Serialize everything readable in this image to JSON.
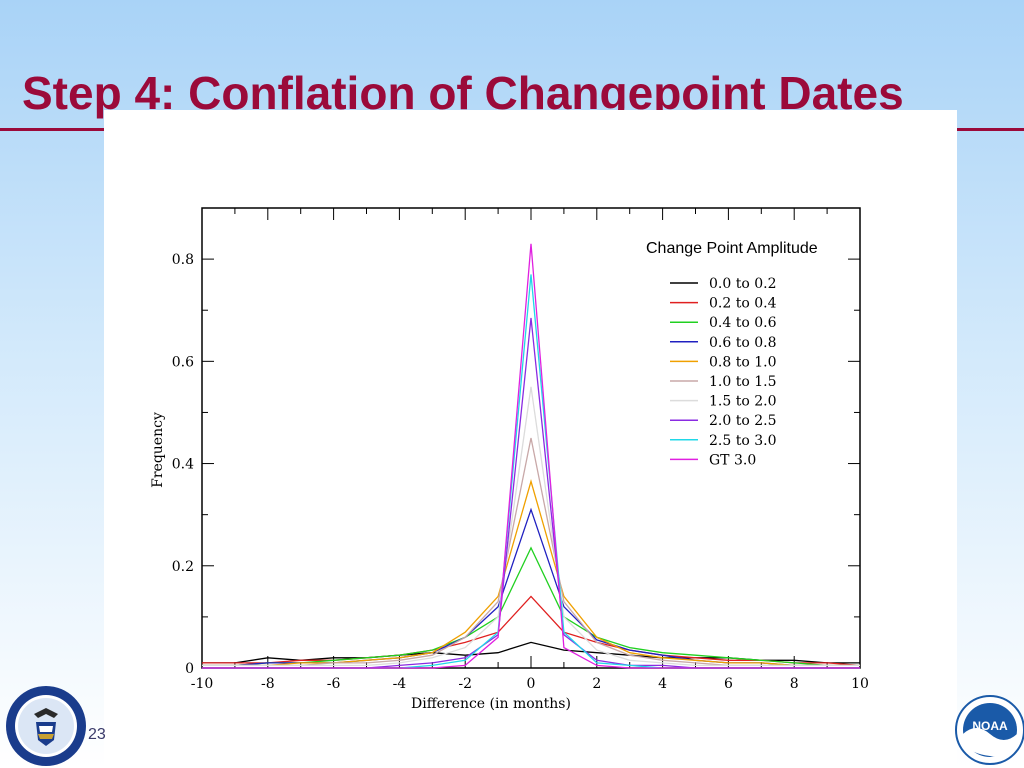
{
  "slide": {
    "title": "Step 4: Conflation of Changepoint Dates",
    "page_number": "23"
  },
  "logos": {
    "left_icon": "department-of-commerce-seal-icon",
    "right_icon": "noaa-logo-icon",
    "noaa_text": "NOAA"
  },
  "chart_data": {
    "type": "line",
    "xlabel": "Difference (in months)",
    "ylabel": "Frequency",
    "xlim": [
      -10,
      10
    ],
    "ylim": [
      0,
      0.9
    ],
    "xticks": [
      -10,
      -8,
      -6,
      -4,
      -2,
      0,
      2,
      4,
      6,
      8,
      10
    ],
    "yticks": [
      0,
      0.2,
      0.4,
      0.6,
      0.8
    ],
    "ytick_labels": [
      "0",
      "0.2",
      "0.4",
      "0.6",
      "0.8"
    ],
    "grid": false,
    "legend": {
      "title": "Change Point Amplitude",
      "position": "top-right"
    },
    "x": [
      -10,
      -9,
      -8,
      -7,
      -6,
      -5,
      -4,
      -3,
      -2,
      -1,
      0,
      1,
      2,
      3,
      4,
      5,
      6,
      7,
      8,
      9,
      10
    ],
    "series": [
      {
        "name": "0.0 to 0.2",
        "color": "#000000",
        "values": [
          0.01,
          0.01,
          0.02,
          0.015,
          0.02,
          0.02,
          0.025,
          0.03,
          0.025,
          0.03,
          0.05,
          0.035,
          0.03,
          0.025,
          0.02,
          0.02,
          0.02,
          0.015,
          0.015,
          0.01,
          0.01
        ]
      },
      {
        "name": "0.2 to 0.4",
        "color": "#e02020",
        "values": [
          0.01,
          0.01,
          0.01,
          0.015,
          0.015,
          0.02,
          0.025,
          0.035,
          0.05,
          0.07,
          0.14,
          0.07,
          0.05,
          0.035,
          0.025,
          0.02,
          0.015,
          0.015,
          0.01,
          0.01,
          0.005
        ]
      },
      {
        "name": "0.4 to 0.6",
        "color": "#20d020",
        "values": [
          0.005,
          0.005,
          0.01,
          0.01,
          0.015,
          0.02,
          0.025,
          0.035,
          0.06,
          0.1,
          0.235,
          0.1,
          0.06,
          0.04,
          0.03,
          0.025,
          0.02,
          0.015,
          0.01,
          0.005,
          0.005
        ]
      },
      {
        "name": "0.6 to 0.8",
        "color": "#2020c0",
        "values": [
          0.005,
          0.005,
          0.01,
          0.01,
          0.01,
          0.015,
          0.02,
          0.03,
          0.06,
          0.12,
          0.31,
          0.12,
          0.055,
          0.035,
          0.025,
          0.015,
          0.01,
          0.01,
          0.005,
          0.005,
          0.005
        ]
      },
      {
        "name": "0.8 to 1.0",
        "color": "#f0a000",
        "values": [
          0.005,
          0.005,
          0.005,
          0.01,
          0.01,
          0.015,
          0.02,
          0.03,
          0.07,
          0.14,
          0.365,
          0.14,
          0.06,
          0.03,
          0.02,
          0.015,
          0.01,
          0.01,
          0.005,
          0.005,
          0.005
        ]
      },
      {
        "name": "1.0 to 1.5",
        "color": "#c8a8a8",
        "values": [
          0.005,
          0.005,
          0.005,
          0.005,
          0.01,
          0.01,
          0.015,
          0.025,
          0.06,
          0.13,
          0.45,
          0.13,
          0.05,
          0.025,
          0.015,
          0.01,
          0.005,
          0.005,
          0.005,
          0.005,
          0.005
        ]
      },
      {
        "name": "1.5 to 2.0",
        "color": "#dcdcdc",
        "values": [
          0.005,
          0.005,
          0.005,
          0.005,
          0.005,
          0.005,
          0.01,
          0.02,
          0.04,
          0.1,
          0.55,
          0.1,
          0.035,
          0.015,
          0.01,
          0.005,
          0.005,
          0.005,
          0.005,
          0.005,
          0.005
        ]
      },
      {
        "name": "2.0 to 2.5",
        "color": "#8a2be2",
        "values": [
          0,
          0,
          0,
          0,
          0,
          0,
          0.005,
          0.01,
          0.02,
          0.065,
          0.685,
          0.065,
          0.015,
          0.005,
          0.005,
          0,
          0,
          0,
          0,
          0,
          0
        ]
      },
      {
        "name": "2.5 to 3.0",
        "color": "#20d8e8",
        "values": [
          0,
          0,
          0,
          0,
          0,
          0,
          0,
          0.005,
          0.015,
          0.07,
          0.77,
          0.07,
          0.01,
          0.005,
          0,
          0,
          0,
          0,
          0,
          0,
          0
        ]
      },
      {
        "name": "GT 3.0",
        "color": "#e020e0",
        "values": [
          0,
          0,
          0,
          0,
          0,
          0,
          0,
          0,
          0.005,
          0.06,
          0.83,
          0.04,
          0.005,
          0,
          0,
          0,
          0,
          0,
          0,
          0,
          0
        ]
      }
    ]
  }
}
